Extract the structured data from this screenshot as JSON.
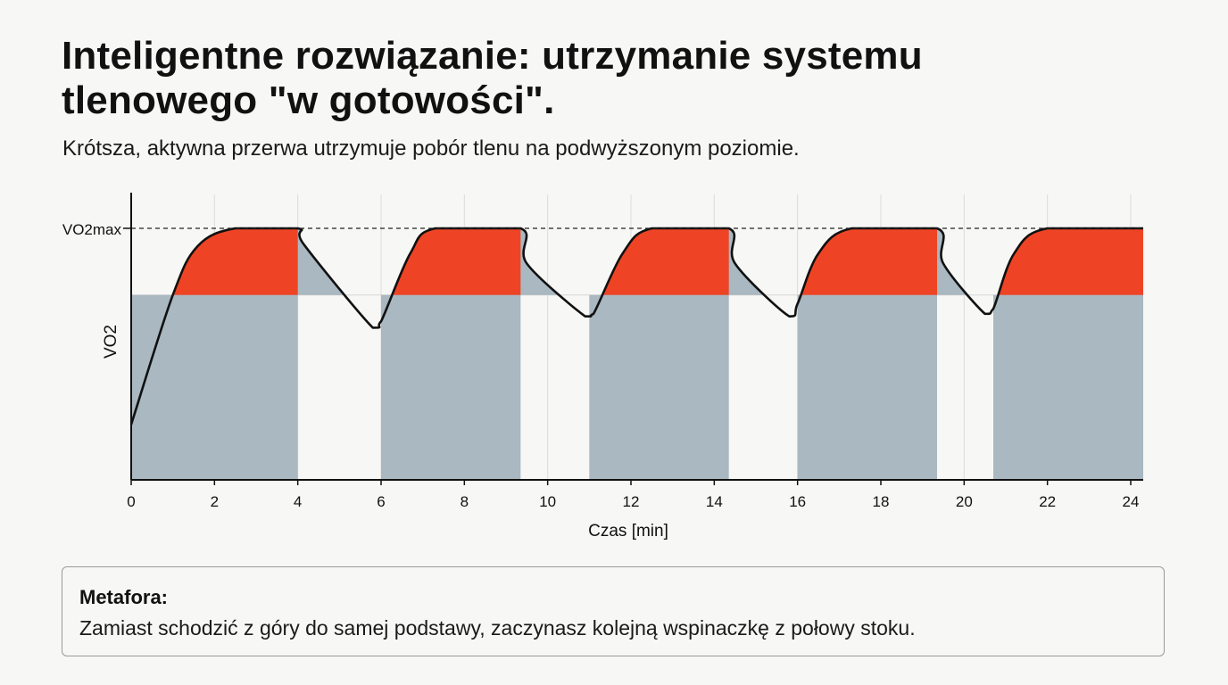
{
  "header": {
    "title": "Inteligentne rozwiązanie: utrzymanie systemu tlenowego \"w gotowości\".",
    "subtitle": "Krótsza, aktywna przerwa utrzymuje pobór tlenu na podwyższonym poziomie."
  },
  "chart_data": {
    "type": "area",
    "xlabel": "Czas [min]",
    "ylabel": "VO2",
    "xlim": [
      0,
      24.3
    ],
    "ylim": [
      0,
      100
    ],
    "x_ticks": [
      0,
      2,
      4,
      6,
      8,
      10,
      12,
      14,
      16,
      18,
      20,
      22,
      24
    ],
    "reference_line": {
      "label": "VO2max",
      "value": 100
    },
    "threshold_value": 73.5,
    "work_intervals": [
      [
        0,
        4
      ],
      [
        6,
        9.35
      ],
      [
        11,
        14.35
      ],
      [
        16,
        19.35
      ],
      [
        20.7,
        24.3
      ]
    ],
    "curve": {
      "x": [
        0,
        1.0,
        1.6,
        2.5,
        4.0,
        4.15,
        5.8,
        6.0,
        6.7,
        7.3,
        9.35,
        9.5,
        10.9,
        11.1,
        11.8,
        12.5,
        14.35,
        14.5,
        15.8,
        16.0,
        16.5,
        17.3,
        19.35,
        19.5,
        20.5,
        20.7,
        21.2,
        22.0,
        24.3
      ],
      "y": [
        22,
        73.5,
        93,
        100,
        100,
        93.5,
        60.5,
        63,
        90,
        100,
        100,
        86,
        65,
        66,
        90,
        100,
        100,
        86,
        65,
        70,
        90,
        100,
        100,
        86,
        66,
        68,
        90,
        100,
        100
      ]
    }
  },
  "note": {
    "title": "Metafora:",
    "text": "Zamiast schodzić z góry do samej podstawy, zaczynasz kolejną wspinaczkę z połowy stoku."
  },
  "colors": {
    "red": "#ee4425",
    "gray": "#a9b8c1",
    "line": "#111111"
  }
}
